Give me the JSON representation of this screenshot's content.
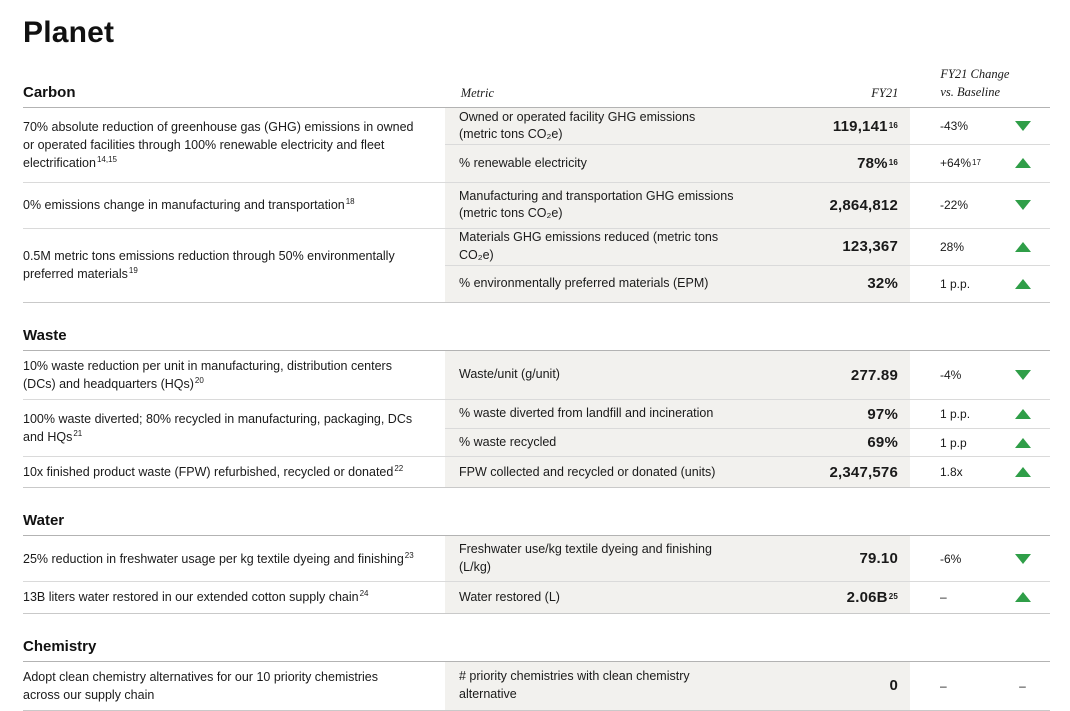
{
  "page": {
    "title": "Planet"
  },
  "table_header": {
    "metric": "Metric",
    "fy21": "FY21",
    "change_line1": "FY21 Change",
    "change_line2": "vs. Baseline"
  },
  "colors": {
    "trend_green": "#2f9e48",
    "row_band": "#f2f1ee"
  },
  "sections": [
    {
      "title": "Carbon",
      "groups": [
        {
          "goal": "70% absolute reduction of greenhouse gas (GHG) emissions in owned or operated facilities through 100% renewable electricity and fleet electrification",
          "goal_footnote": "14,15",
          "rows": [
            {
              "metric": "Owned or operated facility GHG emissions (metric tons CO₂e)",
              "value": "119,141",
              "value_footnote": "16",
              "change": "-43%",
              "trend": "down"
            },
            {
              "metric": "% renewable electricity",
              "value": "78%",
              "value_footnote": "16",
              "change": "+64%",
              "change_footnote": "17",
              "trend": "up"
            }
          ]
        },
        {
          "goal": "0% emissions change in manufacturing and transportation",
          "goal_footnote": "18",
          "rows": [
            {
              "metric": "Manufacturing and transportation GHG emissions (metric tons CO₂e)",
              "value": "2,864,812",
              "change": "-22%",
              "trend": "down"
            }
          ]
        },
        {
          "goal": "0.5M metric tons emissions reduction through 50% environmentally preferred materials",
          "goal_footnote": "19",
          "rows": [
            {
              "metric": "Materials GHG emissions reduced (metric tons CO₂e)",
              "value": "123,367",
              "change": "28%",
              "trend": "up"
            },
            {
              "metric": "% environmentally preferred materials (EPM)",
              "value": "32%",
              "change": "1 p.p.",
              "trend": "up"
            }
          ]
        }
      ]
    },
    {
      "title": "Waste",
      "groups": [
        {
          "goal": "10% waste reduction per unit in manufacturing, distribution centers (DCs) and headquarters (HQs)",
          "goal_footnote": "20",
          "rows": [
            {
              "metric": "Waste/unit (g/unit)",
              "value": "277.89",
              "change": "-4%",
              "trend": "down"
            }
          ]
        },
        {
          "goal": "100% waste diverted; 80% recycled in manufacturing, packaging, DCs and HQs",
          "goal_footnote": "21",
          "rows": [
            {
              "metric": "% waste diverted from landfill and incineration",
              "value": "97%",
              "change": "1 p.p.",
              "trend": "up"
            },
            {
              "metric": "% waste recycled",
              "value": "69%",
              "change": "1 p.p",
              "trend": "up"
            }
          ]
        },
        {
          "goal": "10x finished product waste (FPW) refurbished, recycled or donated",
          "goal_footnote": "22",
          "rows": [
            {
              "metric": "FPW collected and recycled or donated (units)",
              "value": "2,347,576",
              "change": "1.8x",
              "trend": "up"
            }
          ]
        }
      ]
    },
    {
      "title": "Water",
      "groups": [
        {
          "goal": "25% reduction in freshwater usage per kg textile dyeing and finishing",
          "goal_footnote": "23",
          "rows": [
            {
              "metric": "Freshwater use/kg textile dyeing and finishing (L/kg)",
              "value": "79.10",
              "change": "-6%",
              "trend": "down"
            }
          ]
        },
        {
          "goal": "13B liters water restored in our extended cotton supply chain",
          "goal_footnote": "24",
          "rows": [
            {
              "metric": "Water restored (L)",
              "value": "2.06B",
              "value_footnote": "25",
              "change": "–",
              "trend": "up"
            }
          ]
        }
      ]
    },
    {
      "title": "Chemistry",
      "groups": [
        {
          "goal": "Adopt clean chemistry alternatives for our 10 priority chemistries across our supply chain",
          "rows": [
            {
              "metric": "# priority chemistries with clean chemistry alternative",
              "value": "0",
              "change": "–",
              "trend": "none",
              "trend_text": "–"
            }
          ]
        }
      ]
    }
  ]
}
